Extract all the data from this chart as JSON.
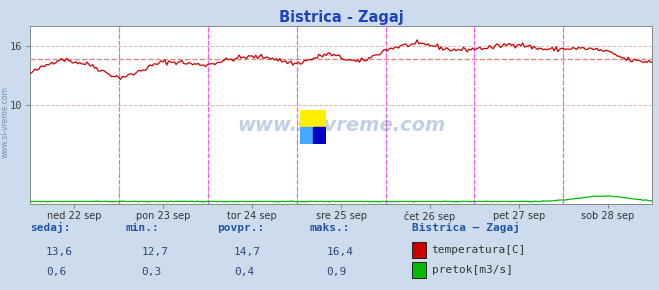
{
  "title": "Bistrica - Zagaj",
  "bg_color": "#ccdcec",
  "plot_bg_color": "#ffffff",
  "x_labels": [
    "ned 22 sep",
    "pon 23 sep",
    "tor 24 sep",
    "sre 25 sep",
    "čet 26 sep",
    "pet 27 sep",
    "sob 28 sep"
  ],
  "ylim": [
    0,
    18
  ],
  "yticks": [
    10,
    16
  ],
  "avg_line": 14.7,
  "temp_color": "#cc0000",
  "flow_color": "#00bb00",
  "avg_line_color": "#dd8888",
  "vline_color": "#ff44ff",
  "grid_color": "#ddbbbb",
  "grid_hcolor": "#bbbbdd",
  "watermark_text": "www.si-vreme.com",
  "watermark_color": "#2255aa",
  "footer_label_color": "#2255aa",
  "footer_val_color": "#2255aa",
  "footer_labels": [
    "sedaj:",
    "min.:",
    "povpr.:",
    "maks.:"
  ],
  "footer_values_temp": [
    "13,6",
    "12,7",
    "14,7",
    "16,4"
  ],
  "footer_values_flow": [
    "0,6",
    "0,3",
    "0,4",
    "0,9"
  ],
  "legend_title": "Bistrica – Zagaj",
  "legend_items": [
    "temperatura[C]",
    "pretok[m3/s]"
  ],
  "legend_colors": [
    "#cc0000",
    "#00bb00"
  ],
  "n_points": 337,
  "left_label": "www.si-vreme.com"
}
